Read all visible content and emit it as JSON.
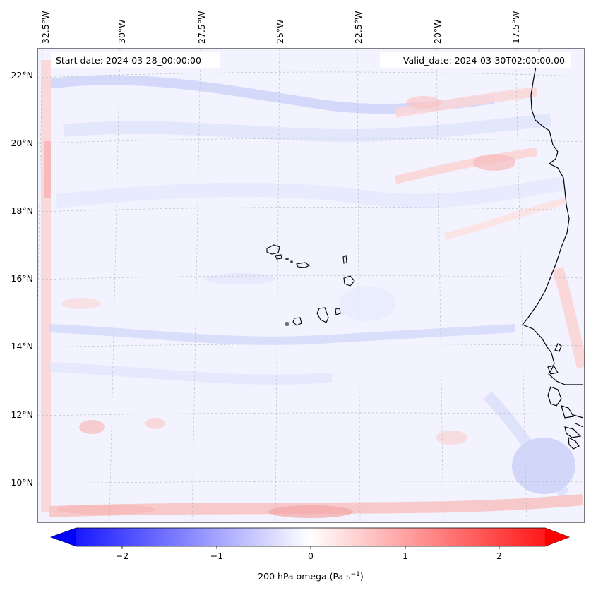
{
  "map": {
    "start_date": "Start date: 2024-03-28_00:00:00",
    "valid_date": "Valid_date: 2024-03-30T02:00:00.00",
    "top_labels": [
      "32.5°W",
      "30°W",
      "27.5°W",
      "25°W",
      "22.5°W",
      "20°W",
      "17.5°W"
    ],
    "left_labels": [
      "22°N",
      "20°N",
      "18°N",
      "16°N",
      "14°N",
      "12°N",
      "10°N"
    ]
  },
  "colorbar": {
    "label": "200 hPa omega (Pa s",
    "label_sup": "−1",
    "label_close": ")",
    "ticks": [
      "−2",
      "−1",
      "0",
      "1",
      "2"
    ],
    "colors": {
      "min": "#0000ff",
      "mid": "#ffffff",
      "max": "#ff0000"
    }
  }
}
